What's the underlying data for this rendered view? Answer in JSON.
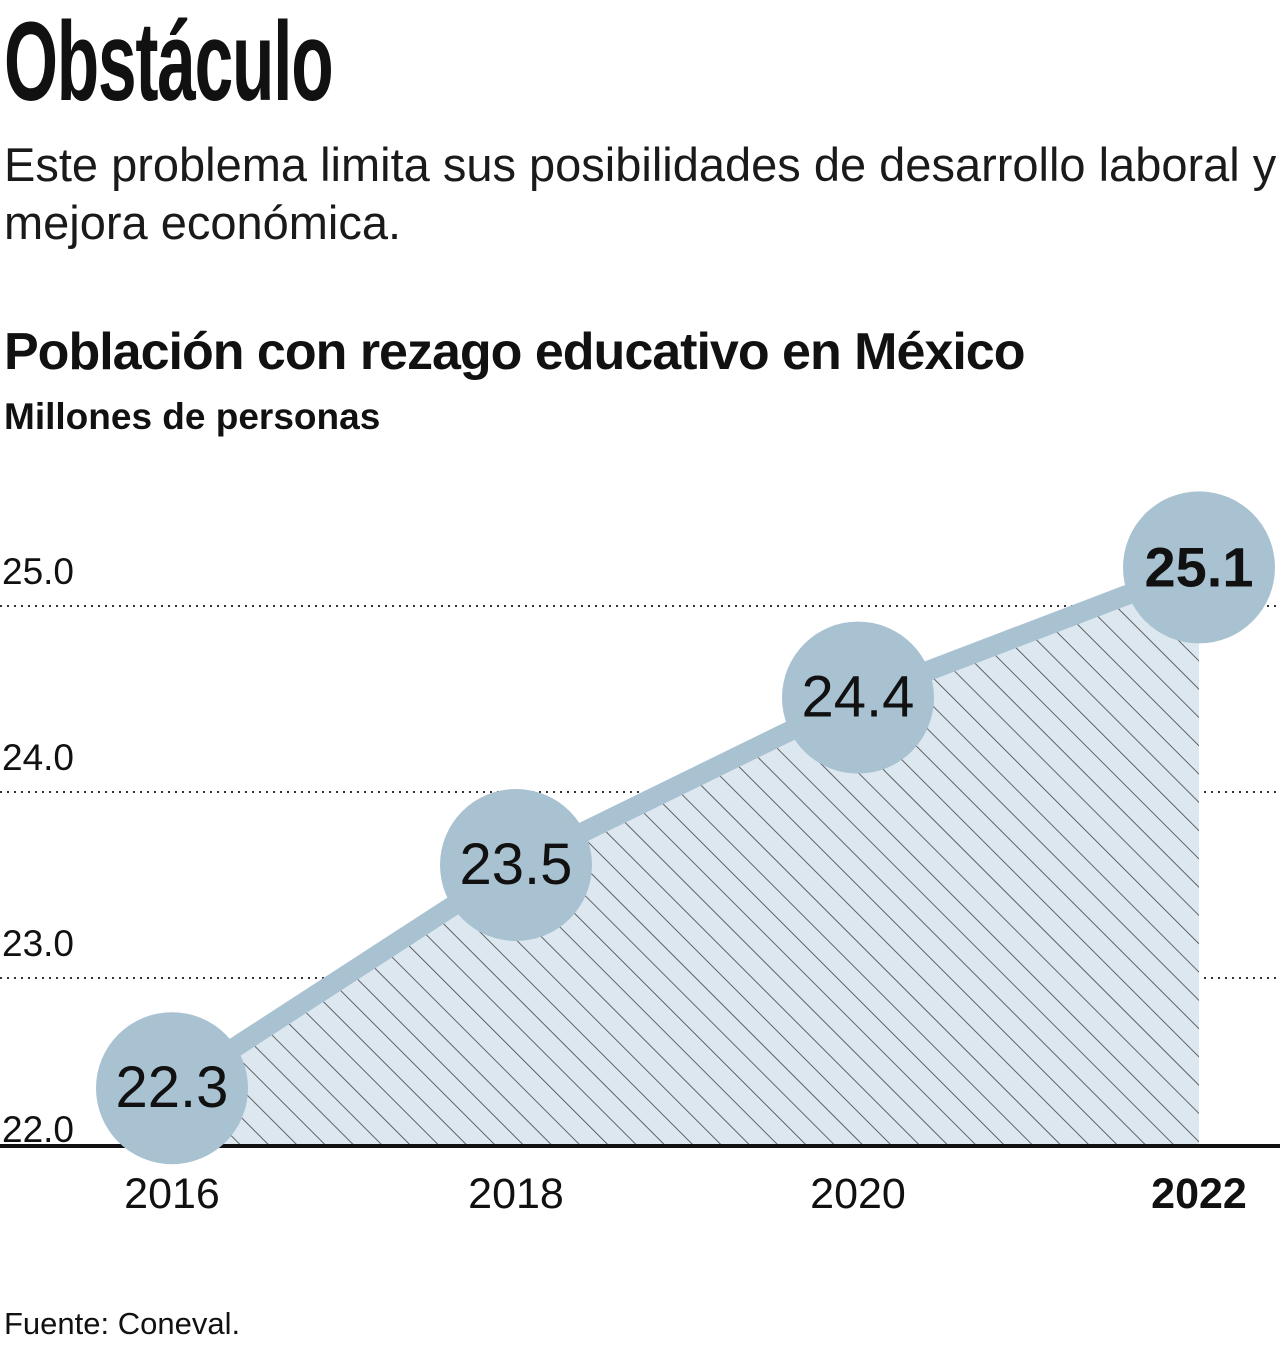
{
  "headline": "Obstáculo",
  "deck": "Este problema limita sus posibilidades de desarrollo laboral y mejora económica.",
  "source": "Fuente: Coneval.",
  "colors": {
    "marker": "#a9c2d2",
    "area": "#dce7ef",
    "hatch": "#444444",
    "text": "#111111"
  },
  "chart_data": {
    "type": "area",
    "title": "Población con rezago educativo en México",
    "subtitle": "Millones de personas",
    "xlabel": "",
    "ylabel": "Millones de personas",
    "categories": [
      "2016",
      "2018",
      "2020",
      "2022"
    ],
    "values": [
      22.3,
      23.5,
      24.4,
      25.1
    ],
    "value_labels": [
      "22.3",
      "23.5",
      "24.4",
      "25.1"
    ],
    "highlight_index": 3,
    "ylim": [
      22.0,
      25.0
    ],
    "yticks": [
      22.0,
      23.0,
      24.0,
      25.0
    ],
    "ytick_labels": [
      "22.0",
      "23.0",
      "24.0",
      "25.0"
    ],
    "grid": true
  }
}
